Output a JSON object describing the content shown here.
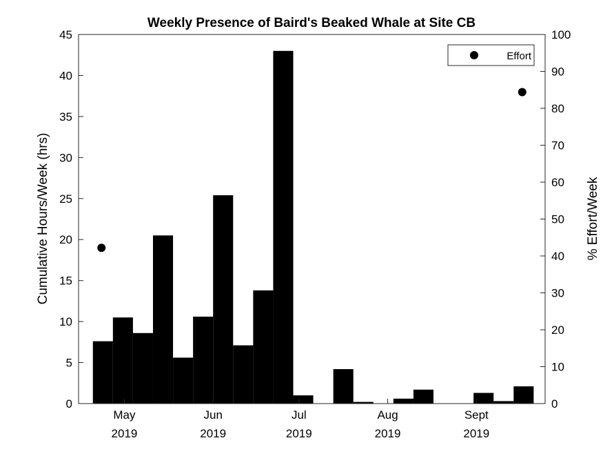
{
  "chart_data": {
    "type": "bar",
    "title": "Weekly Presence of Baird's Beaked Whale at Site CB",
    "ylabel": "Cumulative Hours/Week (hrs)",
    "y2label": "% Effort/Week",
    "xlim": [
      "2019-04-15",
      "2019-09-25"
    ],
    "ylim": [
      0,
      45
    ],
    "y2lim": [
      0,
      100
    ],
    "yticks": [
      0,
      5,
      10,
      15,
      20,
      25,
      30,
      35,
      40,
      45
    ],
    "y2ticks": [
      0,
      10,
      20,
      30,
      40,
      50,
      60,
      70,
      80,
      90,
      100
    ],
    "xticks": [
      {
        "date": "2019-05-01",
        "month": "May",
        "year": "2019"
      },
      {
        "date": "2019-06-01",
        "month": "Jun",
        "year": "2019"
      },
      {
        "date": "2019-07-01",
        "month": "Jul",
        "year": "2019"
      },
      {
        "date": "2019-08-01",
        "month": "Aug",
        "year": "2019"
      },
      {
        "date": "2019-09-01",
        "month": "Sept",
        "year": "2019"
      }
    ],
    "series": [
      {
        "name": "",
        "color": "#000000",
        "bars": [
          {
            "week_start": "2019-04-20",
            "value": 7.6
          },
          {
            "week_start": "2019-04-27",
            "value": 10.5
          },
          {
            "week_start": "2019-05-04",
            "value": 8.6
          },
          {
            "week_start": "2019-05-11",
            "value": 20.5
          },
          {
            "week_start": "2019-05-18",
            "value": 5.6
          },
          {
            "week_start": "2019-05-25",
            "value": 10.6
          },
          {
            "week_start": "2019-06-01",
            "value": 25.4
          },
          {
            "week_start": "2019-06-08",
            "value": 7.1
          },
          {
            "week_start": "2019-06-15",
            "value": 13.8
          },
          {
            "week_start": "2019-06-22",
            "value": 43.0
          },
          {
            "week_start": "2019-06-29",
            "value": 1.0
          },
          {
            "week_start": "2019-07-06",
            "value": 0
          },
          {
            "week_start": "2019-07-13",
            "value": 4.2
          },
          {
            "week_start": "2019-07-20",
            "value": 0.2
          },
          {
            "week_start": "2019-07-27",
            "value": 0
          },
          {
            "week_start": "2019-08-03",
            "value": 0.6
          },
          {
            "week_start": "2019-08-10",
            "value": 1.7
          },
          {
            "week_start": "2019-08-17",
            "value": 0
          },
          {
            "week_start": "2019-08-24",
            "value": 0
          },
          {
            "week_start": "2019-08-31",
            "value": 1.3
          },
          {
            "week_start": "2019-09-07",
            "value": 0.3
          },
          {
            "week_start": "2019-09-14",
            "value": 2.1
          }
        ]
      },
      {
        "name": "Effort",
        "color": "#000000",
        "axis": "right",
        "points": [
          {
            "date": "2019-04-23",
            "value": 42.2
          },
          {
            "date": "2019-09-17",
            "value": 84.4
          }
        ]
      }
    ],
    "legend": {
      "position": "top-right",
      "entries": [
        "Effort"
      ]
    },
    "grid": false
  }
}
